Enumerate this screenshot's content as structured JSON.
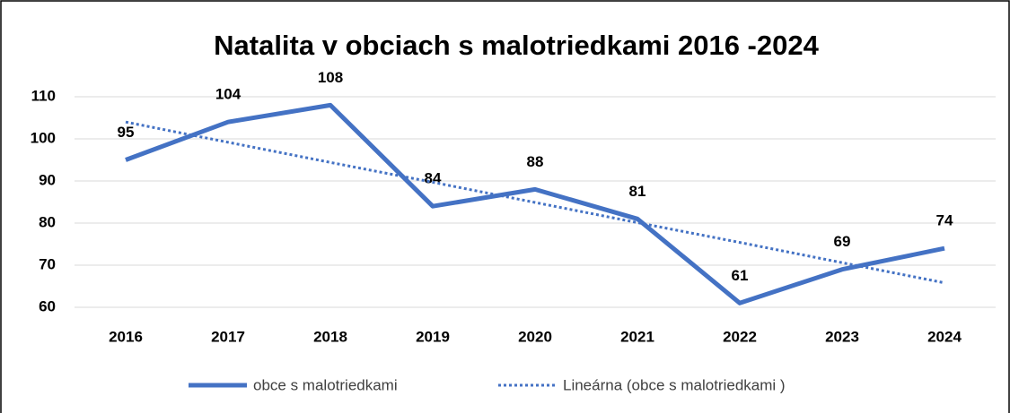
{
  "chart_data": {
    "type": "line",
    "title": "Natalita v obciach s malotriedkami 2016 -2024",
    "categories": [
      "2016",
      "2017",
      "2018",
      "2019",
      "2020",
      "2021",
      "2022",
      "2023",
      "2024"
    ],
    "series": [
      {
        "name": "obce s malotriedkami",
        "color": "#4472c4",
        "values": [
          95,
          104,
          108,
          84,
          88,
          81,
          61,
          69,
          74
        ]
      },
      {
        "name": "Lineárna (obce s malotriedkami )",
        "color": "#4472c4",
        "dash": "dotted",
        "values": [
          104.0,
          99.2,
          94.4,
          89.7,
          84.9,
          80.1,
          75.4,
          70.6,
          65.8
        ]
      }
    ],
    "data_labels_series": 0,
    "ylim": [
      60,
      110
    ],
    "yticks": [
      60,
      70,
      80,
      90,
      100,
      110
    ],
    "grid": true,
    "legend": "bottom"
  }
}
